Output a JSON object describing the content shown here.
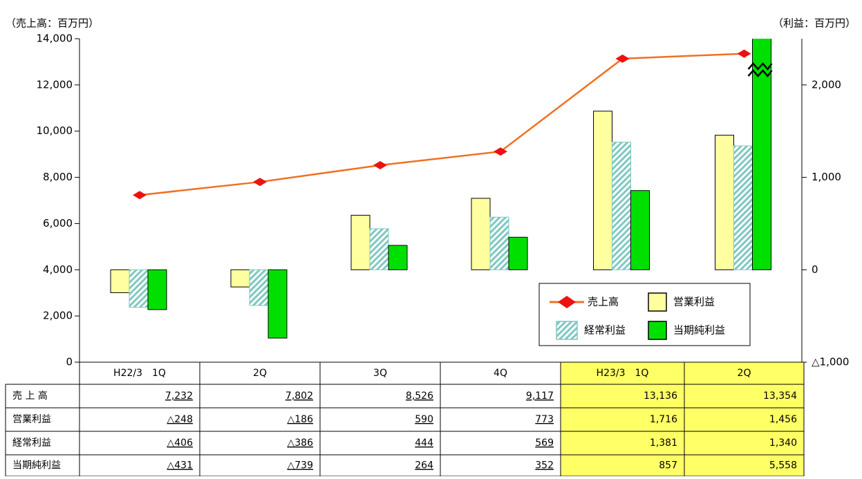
{
  "chart_data": {
    "type": "bar-line",
    "y_axis_title": "（売上高：百万円）",
    "y2_axis_title": "（利益：百万円）",
    "categories": [
      "H22/3　1Q",
      "2Q",
      "3Q",
      "4Q",
      "H23/3　1Q",
      "2Q"
    ],
    "ylim": [
      0,
      14000
    ],
    "yticks": [
      0,
      {
        "value": 2000,
        "label": "2,000"
      },
      {
        "value": 4000,
        "label": "4,000"
      },
      {
        "value": 6000,
        "label": "6,000"
      },
      {
        "value": 8000,
        "label": "8,000"
      },
      {
        "value": 10000,
        "label": "10,000"
      },
      {
        "value": 12000,
        "label": "12,000"
      },
      {
        "value": 14000,
        "label": "14,000"
      }
    ],
    "y2lim": [
      -1000,
      2500
    ],
    "y2ticks": [
      {
        "value": -1000,
        "label": "△1,000"
      },
      0,
      {
        "value": 1000,
        "label": "1,000"
      },
      {
        "value": 2000,
        "label": "2,000"
      }
    ],
    "row_labels": [
      "売 上 高",
      "営業利益",
      "経常利益",
      "当期純利益"
    ],
    "series": [
      {
        "name": "売上高",
        "type": "line",
        "color": "#f07020",
        "marker_color": "#ee1111",
        "values": [
          7232,
          7802,
          8526,
          9117,
          13136,
          13354
        ],
        "value_labels": [
          "7,232",
          "7,802",
          "8,526",
          "9,117",
          "13,136",
          "13,354"
        ]
      },
      {
        "name": "営業利益",
        "type": "bar",
        "axis": "y2",
        "color": "#ffffa0",
        "values": [
          -248,
          -186,
          590,
          773,
          1716,
          1456
        ],
        "value_labels": [
          "△248",
          "△186",
          "590",
          "773",
          "1,716",
          "1,456"
        ]
      },
      {
        "name": "経常利益",
        "type": "bar",
        "axis": "y2",
        "color": "#7fc8c0",
        "pattern": "hatch",
        "values": [
          -406,
          -386,
          444,
          569,
          1381,
          1340
        ],
        "value_labels": [
          "△406",
          "△386",
          "444",
          "569",
          "1,381",
          "1,340"
        ]
      },
      {
        "name": "当期純利益",
        "type": "bar",
        "axis": "y2",
        "color": "#00e000",
        "values": [
          -431,
          -739,
          264,
          352,
          857,
          5558
        ],
        "value_labels": [
          "△431",
          "△739",
          "264",
          "352",
          "857",
          "5,558"
        ]
      }
    ]
  }
}
